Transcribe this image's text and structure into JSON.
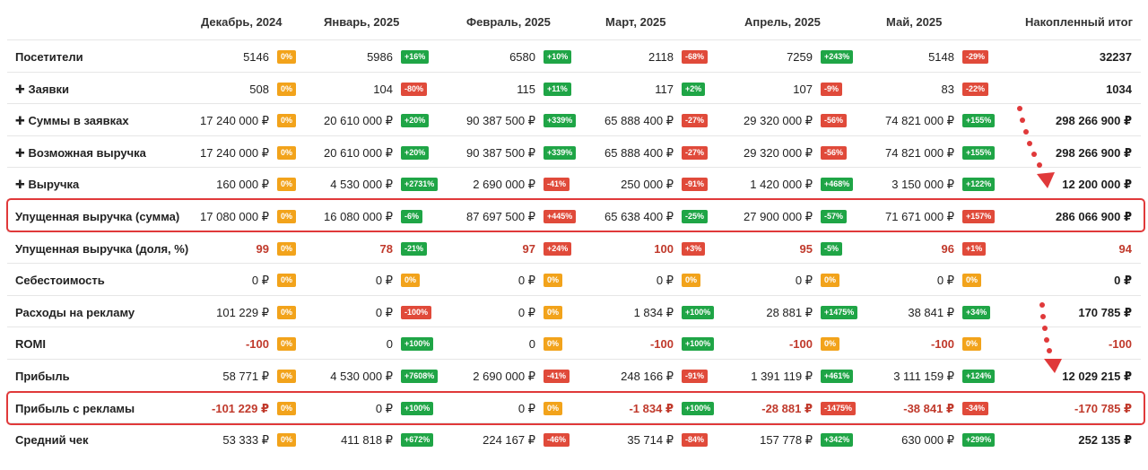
{
  "columns": [
    "Декабрь, 2024",
    "Январь, 2025",
    "Февраль, 2025",
    "Март, 2025",
    "Апрель, 2025",
    "Май, 2025",
    "Накопленный итог"
  ],
  "rows": [
    {
      "label": "Посетители",
      "values": [
        "5146",
        "5986",
        "6580",
        "2118",
        "7259",
        "5148"
      ],
      "badges": [
        [
          "0%",
          "orange"
        ],
        [
          "+16%",
          "green"
        ],
        [
          "+10%",
          "green"
        ],
        [
          "-68%",
          "red"
        ],
        [
          "+243%",
          "green"
        ],
        [
          "-29%",
          "red"
        ]
      ],
      "total": "32237",
      "neg": false
    },
    {
      "label": "✚ Заявки",
      "values": [
        "508",
        "104",
        "115",
        "117",
        "107",
        "83"
      ],
      "badges": [
        [
          "0%",
          "orange"
        ],
        [
          "-80%",
          "red"
        ],
        [
          "+11%",
          "green"
        ],
        [
          "+2%",
          "green"
        ],
        [
          "-9%",
          "red"
        ],
        [
          "-22%",
          "red"
        ]
      ],
      "total": "1034",
      "neg": false
    },
    {
      "label": "✚ Суммы в заявках",
      "values": [
        "17 240 000 ₽",
        "20 610 000 ₽",
        "90 387 500 ₽",
        "65 888 400 ₽",
        "29 320 000 ₽",
        "74 821 000 ₽"
      ],
      "badges": [
        [
          "0%",
          "orange"
        ],
        [
          "+20%",
          "green"
        ],
        [
          "+339%",
          "green"
        ],
        [
          "-27%",
          "red"
        ],
        [
          "-56%",
          "red"
        ],
        [
          "+155%",
          "green"
        ]
      ],
      "total": "298 266 900 ₽",
      "neg": false
    },
    {
      "label": "✚ Возможная выручка",
      "values": [
        "17 240 000 ₽",
        "20 610 000 ₽",
        "90 387 500 ₽",
        "65 888 400 ₽",
        "29 320 000 ₽",
        "74 821 000 ₽"
      ],
      "badges": [
        [
          "0%",
          "orange"
        ],
        [
          "+20%",
          "green"
        ],
        [
          "+339%",
          "green"
        ],
        [
          "-27%",
          "red"
        ],
        [
          "-56%",
          "red"
        ],
        [
          "+155%",
          "green"
        ]
      ],
      "total": "298 266 900 ₽",
      "neg": false
    },
    {
      "label": "✚ Выручка",
      "values": [
        "160 000 ₽",
        "4 530 000 ₽",
        "2 690 000 ₽",
        "250 000 ₽",
        "1 420 000 ₽",
        "3 150 000 ₽"
      ],
      "badges": [
        [
          "0%",
          "orange"
        ],
        [
          "+2731%",
          "green"
        ],
        [
          "-41%",
          "red"
        ],
        [
          "-91%",
          "red"
        ],
        [
          "+468%",
          "green"
        ],
        [
          "+122%",
          "green"
        ]
      ],
      "total": "12 200 000 ₽",
      "neg": false
    },
    {
      "label": "Упущенная выручка (сумма)",
      "values": [
        "17 080 000 ₽",
        "16 080 000 ₽",
        "87 697 500 ₽",
        "65 638 400 ₽",
        "27 900 000 ₽",
        "71 671 000 ₽"
      ],
      "badges": [
        [
          "0%",
          "orange"
        ],
        [
          "-6%",
          "green"
        ],
        [
          "+445%",
          "red"
        ],
        [
          "-25%",
          "green"
        ],
        [
          "-57%",
          "green"
        ],
        [
          "+157%",
          "red"
        ]
      ],
      "total": "286 066 900 ₽",
      "neg": false
    },
    {
      "label": "Упущенная выручка (доля, %)",
      "values": [
        "99",
        "78",
        "97",
        "100",
        "95",
        "96"
      ],
      "badges": [
        [
          "0%",
          "orange"
        ],
        [
          "-21%",
          "green"
        ],
        [
          "+24%",
          "red"
        ],
        [
          "+3%",
          "red"
        ],
        [
          "-5%",
          "green"
        ],
        [
          "+1%",
          "red"
        ]
      ],
      "total": "94",
      "neg": true
    },
    {
      "label": "Себестоимость",
      "values": [
        "0 ₽",
        "0 ₽",
        "0 ₽",
        "0 ₽",
        "0 ₽",
        "0 ₽"
      ],
      "badges": [
        [
          "0%",
          "orange"
        ],
        [
          "0%",
          "orange"
        ],
        [
          "0%",
          "orange"
        ],
        [
          "0%",
          "orange"
        ],
        [
          "0%",
          "orange"
        ],
        [
          "0%",
          "orange"
        ]
      ],
      "total": "0 ₽",
      "neg": false
    },
    {
      "label": "Расходы на рекламу",
      "values": [
        "101 229 ₽",
        "0 ₽",
        "0 ₽",
        "1 834 ₽",
        "28 881 ₽",
        "38 841 ₽"
      ],
      "badges": [
        [
          "0%",
          "orange"
        ],
        [
          "-100%",
          "red"
        ],
        [
          "0%",
          "orange"
        ],
        [
          "+100%",
          "green"
        ],
        [
          "+1475%",
          "green"
        ],
        [
          "+34%",
          "green"
        ]
      ],
      "total": "170 785 ₽",
      "neg": false
    },
    {
      "label": "ROMI",
      "values": [
        "-100",
        "0",
        "0",
        "-100",
        "-100",
        "-100"
      ],
      "badges": [
        [
          "0%",
          "orange"
        ],
        [
          "+100%",
          "green"
        ],
        [
          "0%",
          "orange"
        ],
        [
          "+100%",
          "green"
        ],
        [
          "0%",
          "orange"
        ],
        [
          "0%",
          "orange"
        ]
      ],
      "total": "-100",
      "neg": true,
      "negvals": [
        true,
        false,
        false,
        true,
        true,
        true
      ]
    },
    {
      "label": "Прибыль",
      "values": [
        "58 771 ₽",
        "4 530 000 ₽",
        "2 690 000 ₽",
        "248 166 ₽",
        "1 391 119 ₽",
        "3 111 159 ₽"
      ],
      "badges": [
        [
          "0%",
          "orange"
        ],
        [
          "+7608%",
          "green"
        ],
        [
          "-41%",
          "red"
        ],
        [
          "-91%",
          "red"
        ],
        [
          "+461%",
          "green"
        ],
        [
          "+124%",
          "green"
        ]
      ],
      "total": "12 029 215 ₽",
      "neg": false
    },
    {
      "label": "Прибыль с рекламы",
      "values": [
        "-101 229 ₽",
        "0 ₽",
        "0 ₽",
        "-1 834 ₽",
        "-28 881 ₽",
        "-38 841 ₽"
      ],
      "badges": [
        [
          "0%",
          "orange"
        ],
        [
          "+100%",
          "green"
        ],
        [
          "0%",
          "orange"
        ],
        [
          "+100%",
          "green"
        ],
        [
          "-1475%",
          "red"
        ],
        [
          "-34%",
          "red"
        ]
      ],
      "total": "-170 785 ₽",
      "neg": true,
      "negvals": [
        true,
        false,
        false,
        true,
        true,
        true
      ]
    },
    {
      "label": "Средний чек",
      "values": [
        "53 333 ₽",
        "411 818 ₽",
        "224 167 ₽",
        "35 714 ₽",
        "157 778 ₽",
        "630 000 ₽"
      ],
      "badges": [
        [
          "0%",
          "orange"
        ],
        [
          "+672%",
          "green"
        ],
        [
          "-46%",
          "red"
        ],
        [
          "-84%",
          "red"
        ],
        [
          "+342%",
          "green"
        ],
        [
          "+299%",
          "green"
        ]
      ],
      "total": "252 135 ₽",
      "neg": false
    }
  ],
  "colors": {
    "green": "#1fa546",
    "red": "#e04a3a",
    "orange": "#f2a31b",
    "highlight": "#e0393a"
  }
}
